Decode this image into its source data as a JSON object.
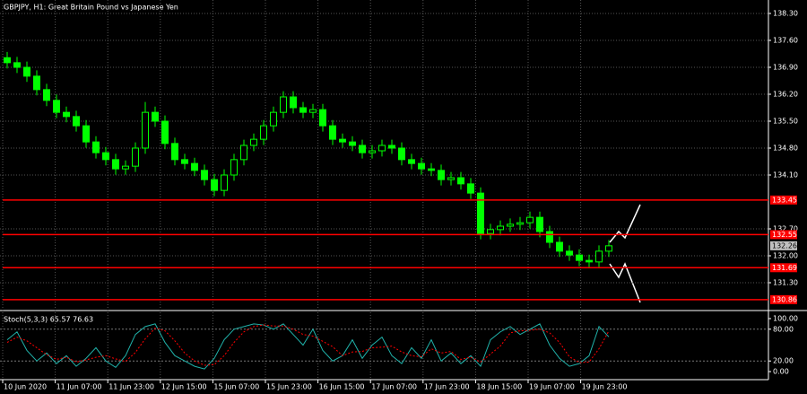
{
  "chart_data": [
    {
      "type": "candlestick",
      "title": "GBPJPY, H1:  Great Britain Pound vs Japanese Yen",
      "x_labels": [
        "10 Jun 2020",
        "11 Jun 07:00",
        "11 Jun 23:00",
        "12 Jun 15:00",
        "15 Jun 07:00",
        "15 Jun 23:00",
        "16 Jun 15:00",
        "17 Jun 07:00",
        "17 Jun 23:00",
        "18 Jun 15:00",
        "19 Jun 07:00",
        "19 Jun 23:00"
      ],
      "open": [
        137.15,
        137.02,
        136.9,
        136.67,
        136.32,
        136.04,
        135.73,
        135.62,
        135.38,
        134.96,
        134.68,
        134.5,
        134.26,
        134.33,
        134.8,
        135.73,
        135.5,
        134.92,
        134.5,
        134.4,
        134.22,
        133.98,
        133.7,
        134.1,
        134.5,
        134.87,
        135.03,
        135.38,
        135.73,
        136.13,
        135.85,
        135.73,
        135.8,
        135.38,
        135.03,
        134.96,
        134.87,
        134.68,
        134.73,
        134.87,
        134.8,
        134.5,
        134.4,
        134.26,
        134.22,
        133.98,
        134.03,
        133.87,
        133.63,
        132.58,
        132.68,
        132.77,
        132.82,
        132.86,
        133.0,
        132.63,
        132.35,
        132.12,
        132.02,
        131.88,
        131.84,
        132.12
      ],
      "high": [
        137.3,
        137.17,
        137.05,
        136.82,
        136.47,
        136.19,
        135.88,
        135.77,
        135.53,
        135.11,
        134.83,
        134.65,
        134.48,
        134.95,
        136.0,
        135.88,
        135.65,
        135.07,
        134.65,
        134.55,
        134.37,
        134.13,
        134.25,
        134.65,
        135.02,
        135.18,
        135.53,
        135.88,
        136.28,
        136.28,
        136.0,
        135.95,
        135.95,
        135.53,
        135.18,
        135.11,
        135.02,
        134.88,
        135.02,
        135.02,
        134.95,
        134.65,
        134.55,
        134.41,
        134.37,
        134.18,
        134.18,
        134.02,
        133.78,
        132.83,
        132.92,
        132.97,
        133.01,
        133.15,
        133.15,
        132.78,
        132.5,
        132.27,
        132.17,
        132.03,
        132.27,
        132.41
      ],
      "low": [
        136.87,
        136.75,
        136.52,
        136.17,
        135.89,
        135.58,
        135.47,
        135.23,
        134.81,
        134.53,
        134.35,
        134.11,
        134.11,
        134.18,
        134.65,
        135.35,
        134.77,
        134.35,
        134.25,
        134.07,
        133.83,
        133.55,
        133.55,
        133.95,
        134.35,
        134.72,
        134.88,
        135.23,
        135.58,
        135.7,
        135.58,
        135.58,
        135.23,
        134.88,
        134.81,
        134.72,
        134.53,
        134.53,
        134.58,
        134.65,
        134.35,
        134.25,
        134.11,
        134.07,
        133.83,
        133.83,
        133.72,
        133.48,
        132.43,
        132.43,
        132.53,
        132.62,
        132.67,
        132.71,
        132.48,
        132.2,
        131.97,
        131.87,
        131.73,
        131.69,
        131.69,
        131.97
      ],
      "close": [
        137.02,
        136.9,
        136.67,
        136.32,
        136.04,
        135.73,
        135.62,
        135.38,
        134.96,
        134.68,
        134.5,
        134.26,
        134.33,
        134.8,
        135.73,
        135.5,
        134.92,
        134.5,
        134.4,
        134.22,
        133.98,
        133.7,
        134.1,
        134.5,
        134.87,
        135.03,
        135.38,
        135.73,
        136.13,
        135.85,
        135.73,
        135.8,
        135.38,
        135.03,
        134.96,
        134.87,
        134.68,
        134.73,
        134.87,
        134.8,
        134.5,
        134.4,
        134.26,
        134.22,
        133.98,
        134.03,
        133.87,
        133.63,
        132.58,
        132.68,
        132.77,
        132.82,
        132.86,
        133.0,
        132.63,
        132.35,
        132.12,
        132.02,
        131.88,
        131.84,
        132.12,
        132.26
      ],
      "color": "#00ff00",
      "ylim": [
        130.6,
        138.65
      ],
      "yticks": [
        {
          "value": 138.3,
          "label": "138.30"
        },
        {
          "value": 137.6,
          "label": "137.60"
        },
        {
          "value": 136.9,
          "label": "136.90"
        },
        {
          "value": 136.2,
          "label": "136.20"
        },
        {
          "value": 135.5,
          "label": "135.50"
        },
        {
          "value": 134.8,
          "label": "134.80"
        },
        {
          "value": 134.1,
          "label": "134.10"
        },
        {
          "value": 132.7,
          "label": "132.70"
        },
        {
          "value": 132.0,
          "label": "132.00"
        },
        {
          "value": 131.3,
          "label": "131.30"
        }
      ],
      "levels": [
        133.45,
        132.55,
        131.69,
        130.86
      ],
      "level_color": "#ff0000",
      "bid": 132.26,
      "grid": true
    },
    {
      "type": "line",
      "title": "Stoch(5,3,3) 65.57 76.63",
      "series": [
        {
          "color": "#20b2aa",
          "values": [
            60,
            75,
            40,
            20,
            35,
            15,
            30,
            10,
            25,
            45,
            20,
            8,
            30,
            70,
            85,
            90,
            55,
            30,
            20,
            10,
            5,
            25,
            60,
            80,
            85,
            90,
            88,
            80,
            90,
            70,
            50,
            80,
            40,
            20,
            30,
            60,
            25,
            50,
            65,
            30,
            15,
            45,
            25,
            60,
            20,
            35,
            15,
            30,
            10,
            60,
            75,
            85,
            70,
            80,
            90,
            50,
            25,
            10,
            15,
            30,
            85,
            65.57
          ]
        },
        {
          "color": "#ff0000",
          "values": [
            55,
            65,
            58,
            45,
            32,
            23,
            27,
            18,
            22,
            27,
            30,
            24,
            19,
            36,
            62,
            82,
            77,
            58,
            35,
            20,
            12,
            13,
            30,
            55,
            75,
            85,
            88,
            86,
            86,
            80,
            70,
            67,
            57,
            47,
            30,
            37,
            38,
            45,
            46,
            48,
            37,
            30,
            28,
            43,
            35,
            38,
            23,
            27,
            18,
            33,
            48,
            73,
            77,
            78,
            80,
            73,
            55,
            28,
            17,
            18,
            43,
            76.63
          ]
        }
      ],
      "ylim": [
        -13.5,
        113.5
      ],
      "yticks": [
        {
          "value": 100,
          "label": "100.00"
        },
        {
          "value": 80,
          "label": "80.00"
        },
        {
          "value": 20,
          "label": "20.00"
        },
        {
          "value": 0,
          "label": "0.00"
        }
      ]
    }
  ]
}
